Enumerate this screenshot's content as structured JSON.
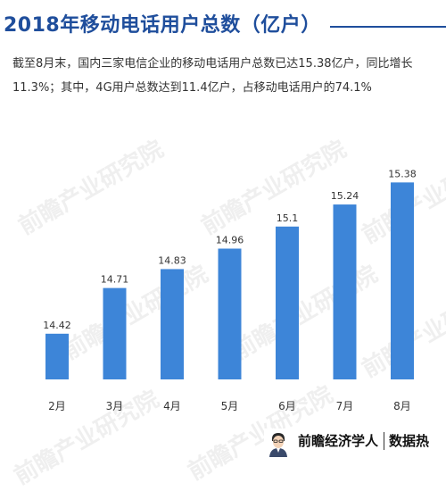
{
  "header": {
    "title": "2018年移动电话用户总数（亿户）"
  },
  "description": "截至8月末，国内三家电信企业的移动电话用户总数已达15.38亿户，同比增长11.3%；其中，4G用户总数达到11.4亿户，占移动电话用户的74.1%",
  "watermark_text": "前瞻产业研究院",
  "footer": {
    "brand": "前瞻经济学人",
    "brand2": "数据热"
  },
  "colors": {
    "bar": "#3d85d8",
    "title": "#1f4e9c"
  },
  "chart_data": {
    "type": "bar",
    "categories": [
      "2月",
      "3月",
      "4月",
      "5月",
      "6月",
      "7月",
      "8月"
    ],
    "values": [
      14.42,
      14.71,
      14.83,
      14.96,
      15.1,
      15.24,
      15.38
    ],
    "value_labels": [
      "14.42",
      "14.71",
      "14.83",
      "14.96",
      "15.1",
      "15.24",
      "15.38"
    ],
    "title": "2018年移动电话用户总数（亿户）",
    "xlabel": "",
    "ylabel": "",
    "ylim": [
      14.13,
      15.45
    ],
    "grid": false,
    "legend": "none",
    "axis_labels_shown": false
  }
}
